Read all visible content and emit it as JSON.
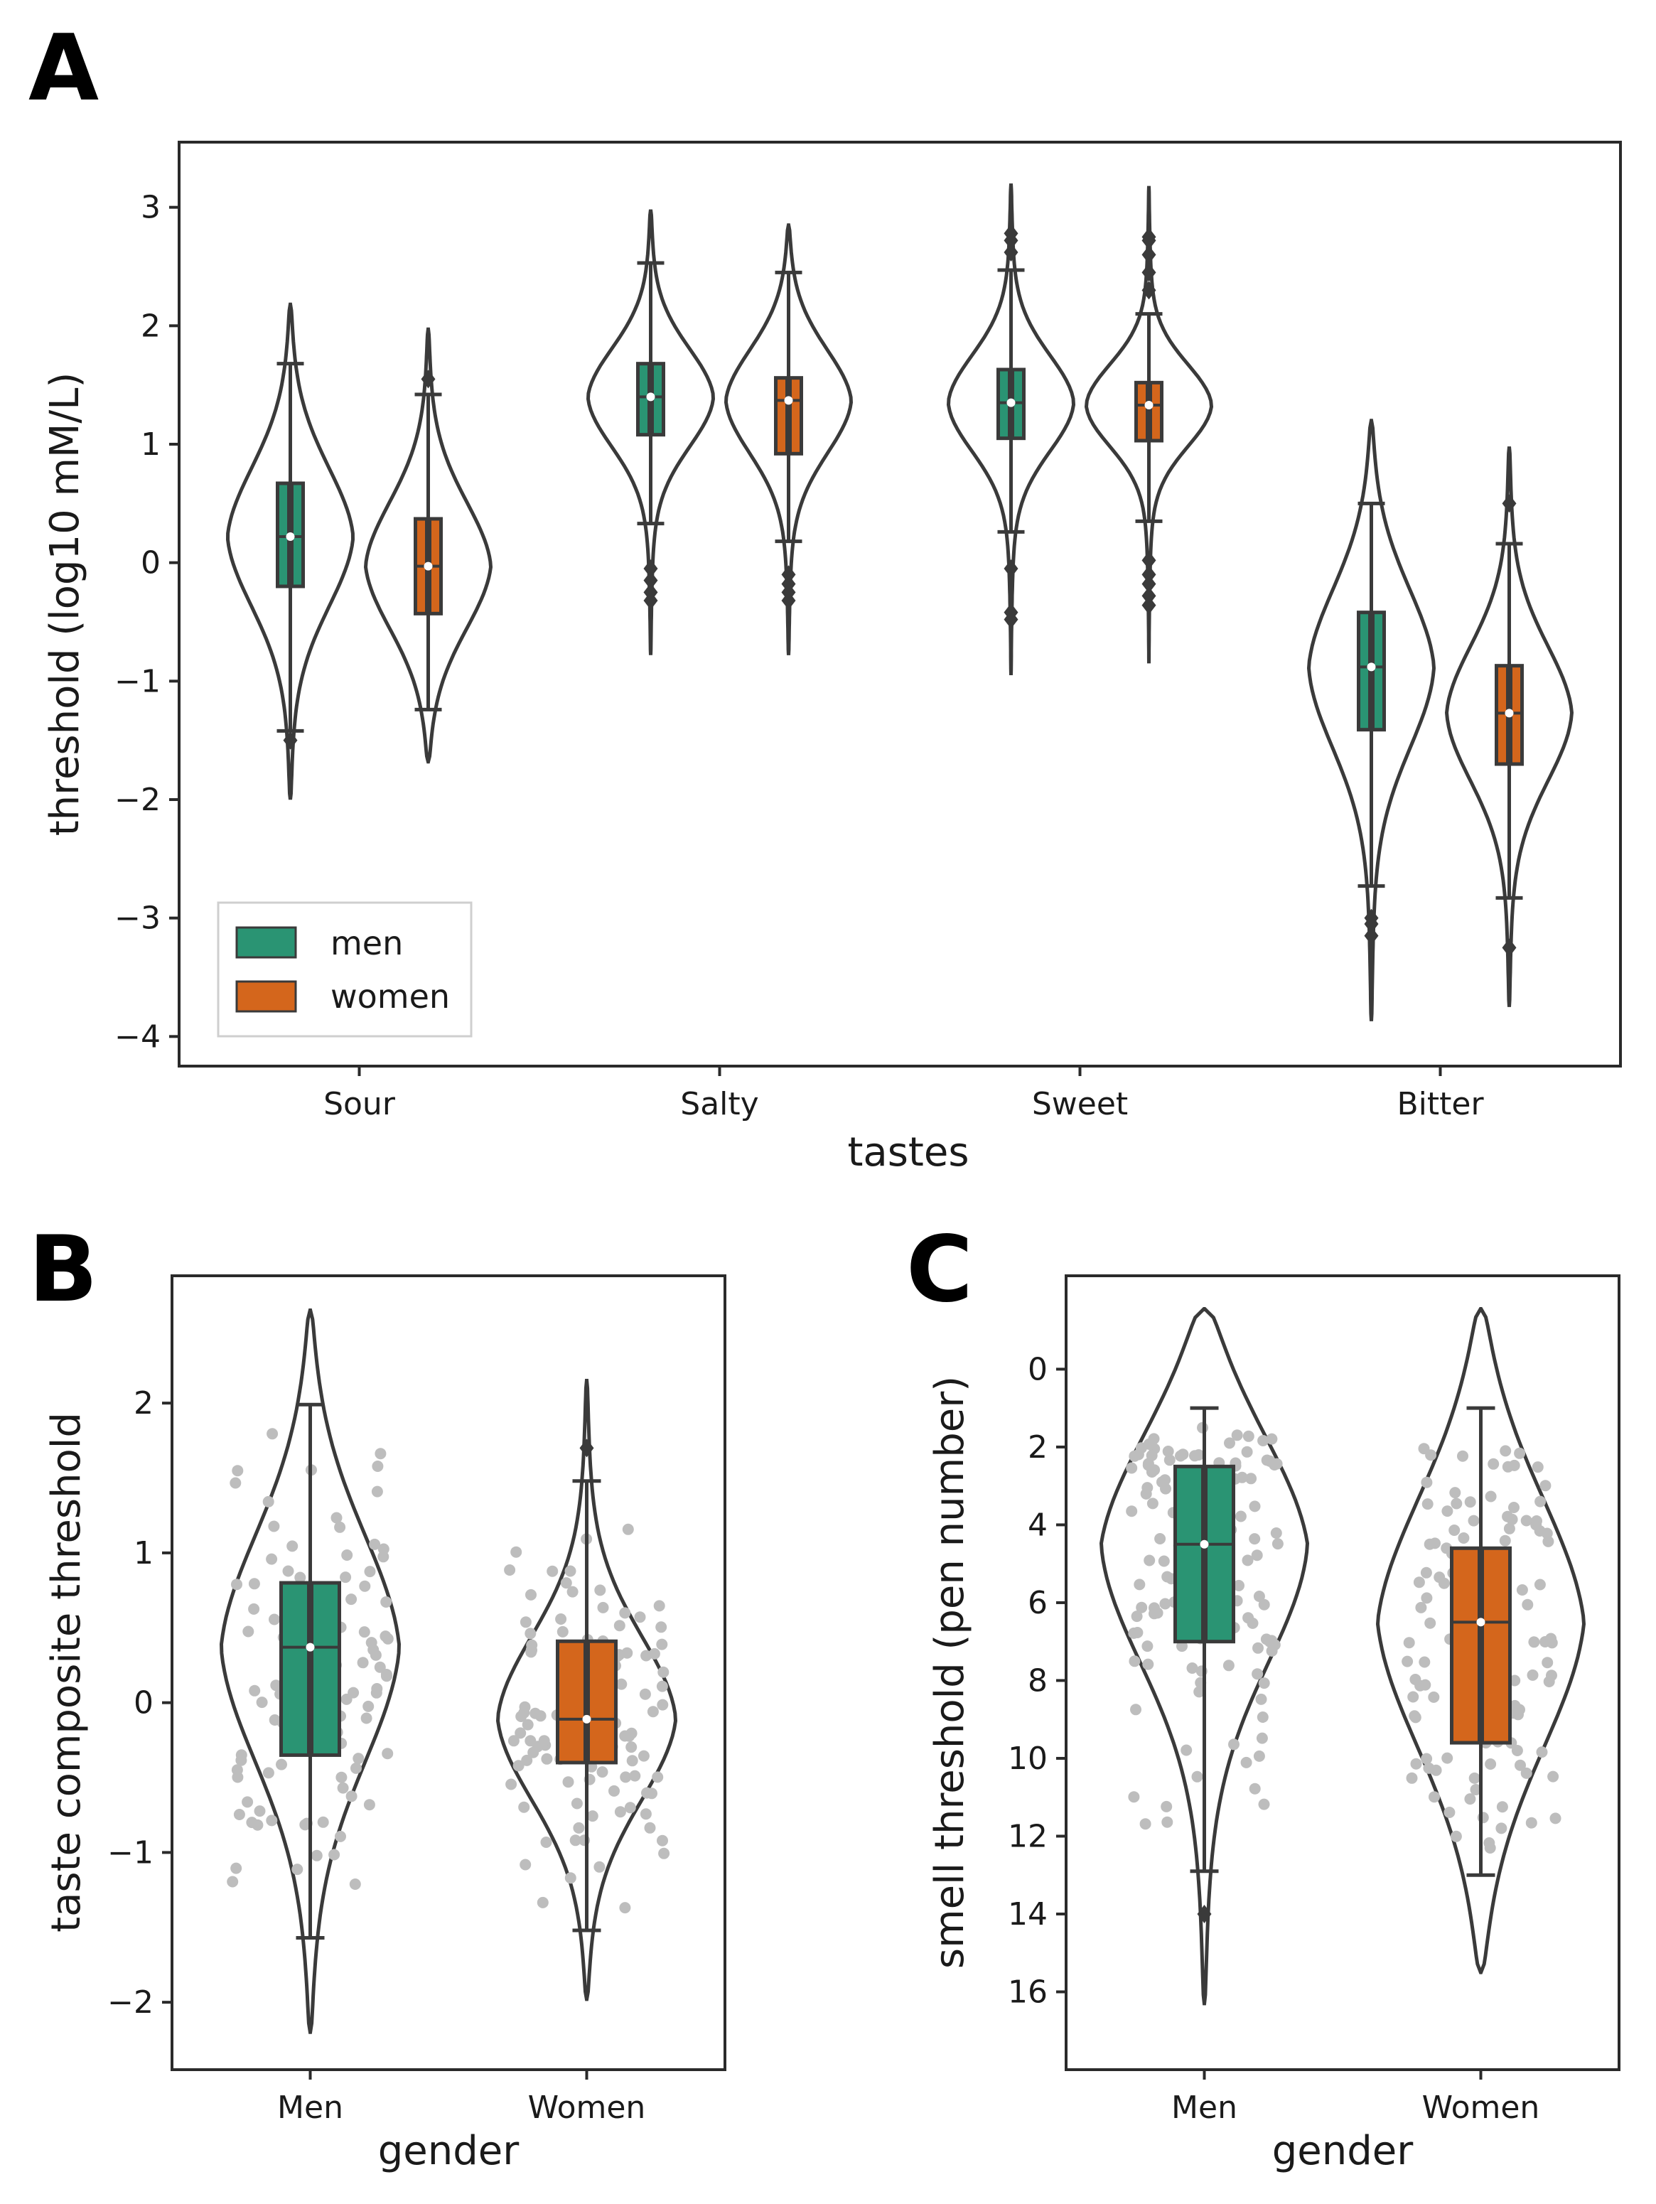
{
  "figure": {
    "panels": [
      "A",
      "B",
      "C"
    ],
    "colors": {
      "men": "#2a9473",
      "women": "#d4661c",
      "outline": "#3a3a3a",
      "points": "#bdbdbd"
    }
  },
  "chart_data": [
    {
      "panel": "A",
      "type": "violin",
      "title": "",
      "xlabel": "tastes",
      "ylabel": "threshold (log10 mM/L)",
      "ylim": [
        -4.25,
        3.55
      ],
      "yticks": [
        -4,
        -3,
        -2,
        -1,
        0,
        1,
        2,
        3
      ],
      "categories": [
        "Sour",
        "Salty",
        "Sweet",
        "Bitter"
      ],
      "legend": {
        "position": "lower-left",
        "entries": [
          "men",
          "women"
        ]
      },
      "series": [
        {
          "name": "men",
          "color": "#2a9473",
          "groups": [
            {
              "category": "Sour",
              "min": -1.42,
              "q1": -0.2,
              "median": 0.22,
              "q3": 0.67,
              "max": 1.68,
              "kde_min": -2.0,
              "kde_max": 2.18,
              "outliers": [
                -1.5
              ]
            },
            {
              "category": "Salty",
              "min": 0.33,
              "q1": 1.08,
              "median": 1.4,
              "q3": 1.68,
              "max": 2.53,
              "kde_min": -0.78,
              "kde_max": 2.98,
              "outliers": [
                -0.05,
                -0.15,
                -0.25,
                -0.32
              ]
            },
            {
              "category": "Sweet",
              "min": 0.26,
              "q1": 1.05,
              "median": 1.35,
              "q3": 1.63,
              "max": 2.47,
              "kde_min": -0.95,
              "kde_max": 3.2,
              "outliers": [
                2.62,
                2.72,
                2.78,
                -0.05,
                -0.42,
                -0.48
              ]
            },
            {
              "category": "Bitter",
              "min": -2.73,
              "q1": -1.41,
              "median": -0.88,
              "q3": -0.42,
              "max": 0.5,
              "kde_min": -3.87,
              "kde_max": 1.2,
              "outliers": [
                -3.0,
                -3.05,
                -3.15
              ]
            }
          ]
        },
        {
          "name": "women",
          "color": "#d4661c",
          "groups": [
            {
              "category": "Sour",
              "min": -1.24,
              "q1": -0.43,
              "median": -0.03,
              "q3": 0.37,
              "max": 1.42,
              "kde_min": -1.68,
              "kde_max": 1.97,
              "outliers": [
                1.55
              ]
            },
            {
              "category": "Salty",
              "min": 0.18,
              "q1": 0.92,
              "median": 1.37,
              "q3": 1.56,
              "max": 2.45,
              "kde_min": -0.78,
              "kde_max": 2.85,
              "outliers": [
                -0.1,
                -0.18,
                -0.25,
                -0.32
              ]
            },
            {
              "category": "Sweet",
              "min": 0.35,
              "q1": 1.03,
              "median": 1.33,
              "q3": 1.52,
              "max": 2.1,
              "kde_min": -0.85,
              "kde_max": 3.18,
              "outliers": [
                2.3,
                2.45,
                2.6,
                2.72,
                2.75,
                0.02,
                -0.1,
                -0.18,
                -0.28,
                -0.36
              ]
            },
            {
              "category": "Bitter",
              "min": -2.83,
              "q1": -1.7,
              "median": -1.27,
              "q3": -0.87,
              "max": 0.16,
              "kde_min": -3.75,
              "kde_max": 0.98,
              "outliers": [
                0.5,
                -3.25
              ]
            }
          ]
        }
      ]
    },
    {
      "panel": "B",
      "type": "violin",
      "title": "",
      "xlabel": "gender",
      "ylabel": "taste composite threshold",
      "ylim": [
        -2.45,
        2.85
      ],
      "yticks": [
        -2,
        -1,
        0,
        1,
        2
      ],
      "categories": [
        "Men",
        "Women"
      ],
      "series": [
        {
          "name": "Men",
          "color": "#2a9473",
          "min": -1.57,
          "q1": -0.35,
          "median": 0.37,
          "q3": 0.8,
          "max": 1.99,
          "kde_min": -2.2,
          "kde_max": 2.62,
          "outliers": []
        },
        {
          "name": "Women",
          "color": "#d4661c",
          "min": -1.52,
          "q1": -0.4,
          "median": -0.11,
          "q3": 0.41,
          "max": 1.48,
          "kde_min": -1.98,
          "kde_max": 2.15,
          "outliers": [
            1.7
          ]
        }
      ]
    },
    {
      "panel": "C",
      "type": "violin",
      "title": "",
      "xlabel": "gender",
      "ylabel": "smell threshold (pen number)",
      "y_inverted": true,
      "ylim": [
        -2.4,
        18.0
      ],
      "yticks": [
        0,
        2,
        4,
        6,
        8,
        10,
        12,
        14,
        16
      ],
      "categories": [
        "Men",
        "Women"
      ],
      "series": [
        {
          "name": "Men",
          "color": "#2a9473",
          "min": 1.0,
          "q1": 2.5,
          "median": 4.5,
          "q3": 7.0,
          "max": 12.9,
          "kde_min": -1.55,
          "kde_max": 16.3,
          "outliers": [
            14.0
          ]
        },
        {
          "name": "Women",
          "color": "#d4661c",
          "min": 1.0,
          "q1": 4.6,
          "median": 6.5,
          "q3": 9.6,
          "max": 13.0,
          "kde_min": -1.55,
          "kde_max": 15.5,
          "outliers": []
        }
      ]
    }
  ]
}
